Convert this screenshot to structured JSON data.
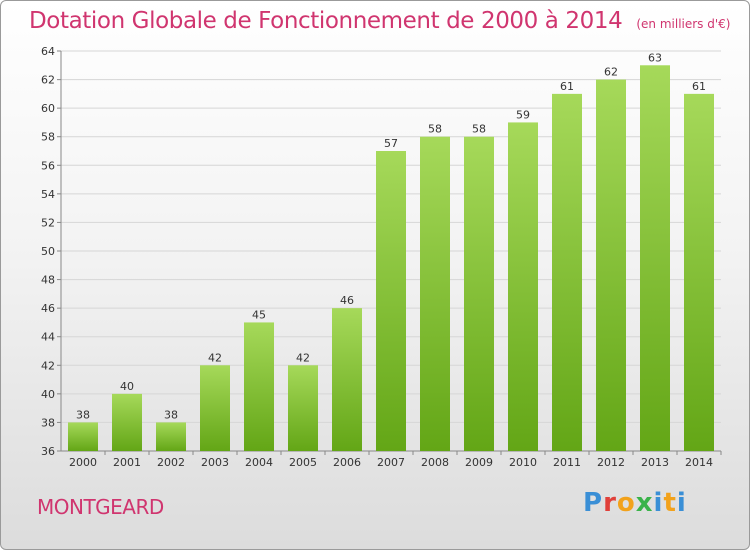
{
  "title": "Dotation Globale de Fonctionnement de 2000 à 2014",
  "subtitle": "(en milliers d'€)",
  "city": "MONTGEARD",
  "logo_text": "Proxiti",
  "colors": {
    "title": "#d0356f",
    "bar_top": "#a6d95a",
    "bar_bottom": "#63a616"
  },
  "chart_data": {
    "type": "bar",
    "title": "Dotation Globale de Fonctionnement de 2000 à 2014",
    "subtitle": "(en milliers d'€)",
    "xlabel": "",
    "ylabel": "",
    "categories": [
      "2000",
      "2001",
      "2002",
      "2003",
      "2004",
      "2005",
      "2006",
      "2007",
      "2008",
      "2009",
      "2010",
      "2011",
      "2012",
      "2013",
      "2014"
    ],
    "values": [
      38,
      40,
      38,
      42,
      45,
      42,
      46,
      57,
      58,
      58,
      59,
      61,
      62,
      63,
      61
    ],
    "ylim": [
      36,
      64
    ],
    "yticks": [
      36,
      38,
      40,
      42,
      44,
      46,
      48,
      50,
      52,
      54,
      56,
      58,
      60,
      62,
      64
    ],
    "grid": true,
    "legend": "none"
  }
}
